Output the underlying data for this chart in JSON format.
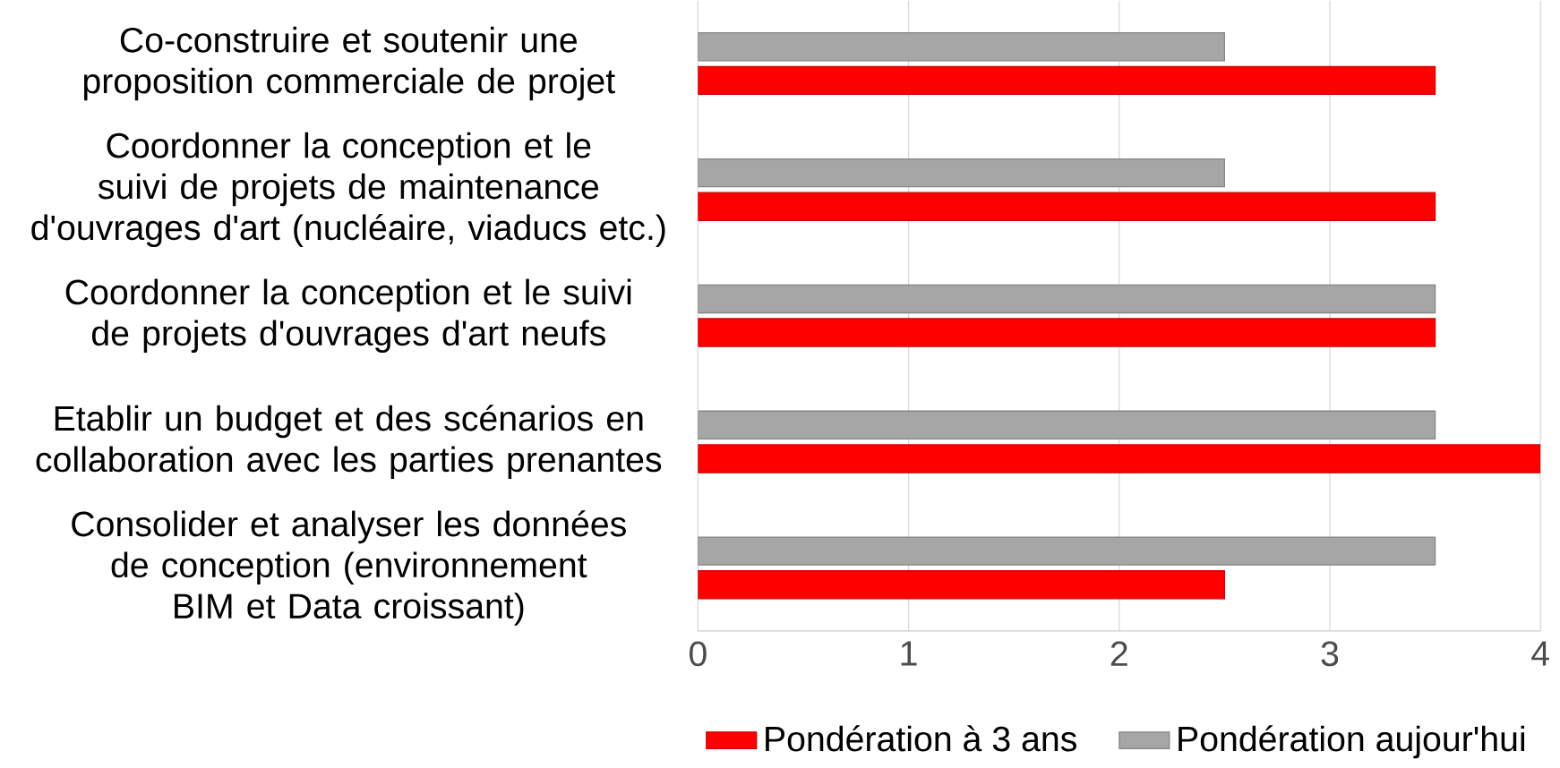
{
  "chart_data": {
    "type": "bar",
    "orientation": "horizontal",
    "categories": [
      "Co-construire et soutenir une proposition commerciale de projet",
      "Coordonner la conception et le suivi de projets de maintenance d'ouvrages d'art (nucléaire, viaducs etc.)",
      "Coordonner la conception et le suivi de projets d'ouvrages d'art neufs",
      "Etablir un budget et des scénarios en collaboration avec les parties prenantes",
      "Consolider et analyser les données de conception (environnement BIM et Data croissant)"
    ],
    "series": [
      {
        "name": "Pondération à 3 ans",
        "color": "#ff0000",
        "values": [
          3.5,
          3.5,
          3.5,
          4,
          2.5
        ]
      },
      {
        "name": "Pondération aujour'hui",
        "color": "#a6a6a6",
        "values": [
          2.5,
          2.5,
          3.5,
          3.5,
          3.5
        ]
      }
    ],
    "xlim": [
      0,
      4
    ],
    "xticks": [
      0,
      1,
      2,
      3,
      4
    ],
    "grid": "x",
    "legend": "bottom"
  }
}
